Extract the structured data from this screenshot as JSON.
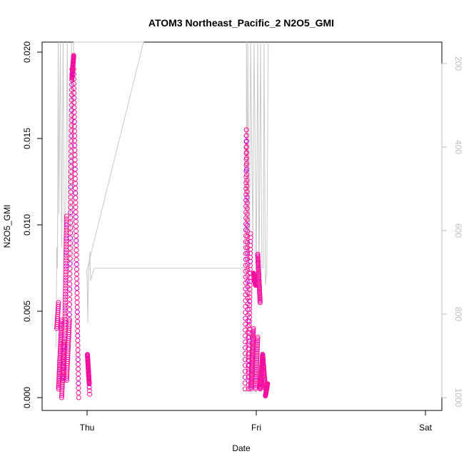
{
  "chart_data": {
    "type": "scatter",
    "title": "ATOM3 Northeast_Pacific_2 N2O5_GMI",
    "xlabel": "Date",
    "ylabel": "N2O5_GMI",
    "x_ticks": [
      "Thu",
      "Fri",
      "Sat"
    ],
    "xlim": [
      "Wed 20:00",
      "Sat 00:40"
    ],
    "ylim": [
      0,
      0.0205
    ],
    "y_ticks": [
      "0.000",
      "0.005",
      "0.010",
      "0.015",
      "0.020"
    ],
    "y_tick_values": [
      0,
      0.005,
      0.01,
      0.015,
      0.02
    ],
    "right_axis": {
      "reversed": true,
      "ylim": [
        1020,
        50
      ],
      "ticks": [
        "200",
        "400",
        "600",
        "800",
        "1000"
      ],
      "tick_values": [
        200,
        400,
        600,
        800,
        1000
      ],
      "color": "#bebebe"
    },
    "colors": {
      "points": "#ff1493",
      "points_alt": "#d000d0",
      "pressure_line": "#c8c8c8"
    },
    "grid": false,
    "series": [
      {
        "kind": "points",
        "segments": [
          {
            "t0": -4.3,
            "t1": -4.05,
            "v0": 0.004,
            "v1": 0.0055,
            "n": 14
          },
          {
            "t0": -4.05,
            "t1": -3.6,
            "v0": 0.0005,
            "v1": 0.0045,
            "n": 40
          },
          {
            "t0": -3.6,
            "t1": -3.3,
            "v0": 0.0,
            "v1": 0.0032,
            "n": 30
          },
          {
            "t0": -3.3,
            "t1": -2.9,
            "v0": 0.001,
            "v1": 0.0105,
            "n": 60
          },
          {
            "t0": -2.9,
            "t1": -2.5,
            "v0": 0.001,
            "v1": 0.0045,
            "n": 30
          },
          {
            "t0": -2.5,
            "t1": -2.15,
            "v0": 0.0045,
            "v1": 0.019,
            "n": 50
          },
          {
            "t0": -2.15,
            "t1": -1.9,
            "v0": 0.0185,
            "v1": 0.0198,
            "n": 35
          },
          {
            "t0": -1.9,
            "t1": -1.2,
            "v0": 0.019,
            "v1": 0.0,
            "n": 70
          },
          {
            "t0": 0.05,
            "t1": 0.3,
            "v0": 0.0025,
            "v1": 0.0008,
            "n": 40
          },
          {
            "t0": 0.3,
            "t1": 0.35,
            "v0": 0.0008,
            "v1": 0.0002,
            "n": 4
          },
          {
            "t0": 22.4,
            "t1": 22.6,
            "v0": 0.0005,
            "v1": 0.0155,
            "n": 45
          },
          {
            "t0": 22.6,
            "t1": 22.9,
            "v0": 0.0155,
            "v1": 0.0012,
            "n": 45
          },
          {
            "t0": 22.9,
            "t1": 23.2,
            "v0": 0.0005,
            "v1": 0.0095,
            "n": 40
          },
          {
            "t0": 23.2,
            "t1": 23.6,
            "v0": 0.0005,
            "v1": 0.004,
            "n": 40
          },
          {
            "t0": 23.6,
            "t1": 23.9,
            "v0": 0.0072,
            "v1": 0.0065,
            "n": 35
          },
          {
            "t0": 23.9,
            "t1": 24.2,
            "v0": 0.0005,
            "v1": 0.0035,
            "n": 30
          },
          {
            "t0": 24.2,
            "t1": 24.55,
            "v0": 0.0083,
            "v1": 0.0055,
            "n": 40
          },
          {
            "t0": 24.55,
            "t1": 24.9,
            "v0": 0.0005,
            "v1": 0.0025,
            "n": 40
          },
          {
            "t0": 24.9,
            "t1": 25.3,
            "v0": 0.0025,
            "v1": 0.0005,
            "n": 35
          },
          {
            "t0": 25.3,
            "t1": 25.6,
            "v0": 0.0001,
            "v1": 0.0008,
            "n": 20
          }
        ]
      },
      {
        "kind": "line",
        "name": "",
        "points": [
          [
            -4.4,
            880
          ],
          [
            -4.3,
            640
          ],
          [
            -4.2,
            690
          ],
          [
            -4.1,
            50
          ],
          [
            -4.0,
            560
          ],
          [
            -3.8,
            50
          ],
          [
            -3.6,
            640
          ],
          [
            -3.4,
            50
          ],
          [
            -3.2,
            660
          ],
          [
            -3.0,
            520
          ],
          [
            -2.8,
            50
          ],
          [
            -2.6,
            700
          ],
          [
            -2.4,
            640
          ],
          [
            -2.2,
            50
          ],
          [
            -2.0,
            690
          ],
          [
            -1.9,
            50
          ],
          [
            -1.8,
            50
          ],
          [
            -1.5,
            50
          ],
          [
            -1.0,
            50
          ],
          [
            8.0,
            50
          ],
          [
            -0.1,
            700
          ],
          [
            0.0,
            705
          ],
          [
            0.1,
            820
          ],
          [
            0.2,
            700
          ],
          [
            0.4,
            650
          ],
          [
            0.5,
            720
          ],
          [
            1.0,
            690
          ],
          [
            22.6,
            690
          ],
          [
            22.6,
            680
          ],
          [
            22.6,
            50
          ],
          [
            22.7,
            660
          ],
          [
            22.8,
            50
          ],
          [
            23.0,
            700
          ],
          [
            23.2,
            50
          ],
          [
            23.5,
            620
          ],
          [
            23.7,
            50
          ],
          [
            24.0,
            690
          ],
          [
            24.2,
            50
          ],
          [
            24.4,
            730
          ],
          [
            24.6,
            50
          ],
          [
            24.8,
            690
          ],
          [
            25.0,
            690
          ],
          [
            25.1,
            50
          ],
          [
            25.3,
            730
          ],
          [
            25.5,
            690
          ],
          [
            25.7,
            50
          ]
        ]
      }
    ]
  }
}
